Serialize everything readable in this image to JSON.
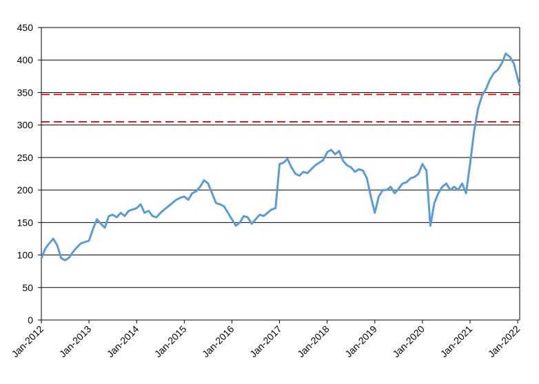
{
  "chart_data": {
    "type": "line",
    "title": "",
    "xlabel": "",
    "ylabel": "",
    "ylim": [
      0,
      450
    ],
    "xlim": [
      "2012-01",
      "2022-01"
    ],
    "yticks": [
      0,
      50,
      100,
      150,
      200,
      250,
      300,
      350,
      400,
      450
    ],
    "yticks_text": [
      "0",
      "50",
      "100",
      "150",
      "200",
      "250",
      "300",
      "350",
      "400",
      "450"
    ],
    "xticks": [
      "Jan-2012",
      "Jan-2013",
      "Jan-2014",
      "Jan-2015",
      "Jan-2016",
      "Jan-2017",
      "Jan-2018",
      "Jan-2019",
      "Jan-2020",
      "Jan-2021",
      "Jan-2022"
    ],
    "grid": "horizontal",
    "colors": {
      "series": "#5b9bd5",
      "reference": "#e01b1b",
      "grid": "#000000"
    },
    "reference_lines": [
      347,
      305
    ],
    "series": [
      {
        "x": [
          "2012-01",
          "2012-02",
          "2012-03",
          "2012-04",
          "2012-05",
          "2012-06",
          "2012-07",
          "2012-08",
          "2012-09",
          "2012-10",
          "2012-11",
          "2012-12",
          "2013-01",
          "2013-02",
          "2013-03",
          "2013-04",
          "2013-05",
          "2013-06",
          "2013-07",
          "2013-08",
          "2013-09",
          "2013-10",
          "2013-11",
          "2013-12",
          "2014-01",
          "2014-02",
          "2014-03",
          "2014-04",
          "2014-05",
          "2014-06",
          "2014-07",
          "2014-08",
          "2014-09",
          "2014-10",
          "2014-11",
          "2014-12",
          "2015-01",
          "2015-02",
          "2015-03",
          "2015-04",
          "2015-05",
          "2015-06",
          "2015-07",
          "2015-08",
          "2015-09",
          "2015-10",
          "2015-11",
          "2015-12",
          "2016-01",
          "2016-02",
          "2016-03",
          "2016-04",
          "2016-05",
          "2016-06",
          "2016-07",
          "2016-08",
          "2016-09",
          "2016-10",
          "2016-11",
          "2016-12",
          "2017-01",
          "2017-02",
          "2017-03",
          "2017-04",
          "2017-05",
          "2017-06",
          "2017-07",
          "2017-08",
          "2017-09",
          "2017-10",
          "2017-11",
          "2017-12",
          "2018-01",
          "2018-02",
          "2018-03",
          "2018-04",
          "2018-05",
          "2018-06",
          "2018-07",
          "2018-08",
          "2018-09",
          "2018-10",
          "2018-11",
          "2018-12",
          "2019-01",
          "2019-02",
          "2019-03",
          "2019-04",
          "2019-05",
          "2019-06",
          "2019-07",
          "2019-08",
          "2019-09",
          "2019-10",
          "2019-11",
          "2019-12",
          "2020-01",
          "2020-02",
          "2020-03",
          "2020-04",
          "2020-05",
          "2020-06",
          "2020-07",
          "2020-08",
          "2020-09",
          "2020-10",
          "2020-11",
          "2020-12",
          "2021-01",
          "2021-02",
          "2021-03",
          "2021-04",
          "2021-05",
          "2021-06",
          "2021-07",
          "2021-08",
          "2021-09",
          "2021-10",
          "2021-11",
          "2021-12",
          "2022-01"
        ],
        "values": [
          95,
          110,
          118,
          125,
          115,
          95,
          92,
          96,
          105,
          112,
          118,
          120,
          122,
          140,
          155,
          148,
          142,
          160,
          162,
          158,
          165,
          160,
          168,
          170,
          172,
          178,
          165,
          168,
          160,
          158,
          165,
          170,
          175,
          180,
          185,
          188,
          190,
          185,
          195,
          198,
          205,
          215,
          210,
          195,
          180,
          178,
          175,
          165,
          155,
          145,
          150,
          160,
          158,
          148,
          155,
          162,
          160,
          165,
          170,
          172,
          240,
          242,
          248,
          235,
          225,
          222,
          228,
          226,
          232,
          238,
          242,
          246,
          258,
          262,
          255,
          260,
          245,
          238,
          235,
          228,
          232,
          230,
          218,
          190,
          165,
          190,
          200,
          200,
          205,
          195,
          202,
          210,
          212,
          218,
          220,
          225,
          240,
          230,
          145,
          180,
          195,
          205,
          210,
          200,
          205,
          200,
          210,
          195,
          240,
          290,
          325,
          345,
          355,
          370,
          380,
          385,
          395,
          410,
          405,
          395,
          360
        ]
      }
    ]
  }
}
